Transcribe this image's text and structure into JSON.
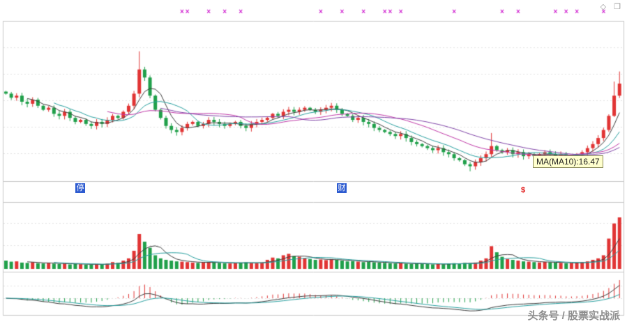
{
  "header": {
    "corner_icons": [
      {
        "glyph": "◇",
        "name": "diamond-icon"
      },
      {
        "glyph": "❐",
        "name": "window-icon"
      }
    ]
  },
  "tooltip": {
    "text": "MA(MA10):16.47"
  },
  "watermark": {
    "text": "头条号 / 股票实战派"
  },
  "chart_data": {
    "type": "candlestick",
    "panes": [
      "price",
      "volume",
      "macd"
    ],
    "price_axis_range": [
      15.2,
      22.8
    ],
    "ma_periods": [
      5,
      10,
      20,
      30
    ],
    "marker_glyph": "×",
    "series_colors": {
      "up": "#e13434",
      "down": "#20a04a",
      "ma5": "#3c3c3c",
      "ma10": "#28a0a0",
      "ma20": "#c038a8",
      "ma30": "#8044a8",
      "vol_ma5": "#3c3c3c",
      "vol_ma10": "#28a0a0",
      "dif": "#3c3c3c",
      "dea": "#28a0a0",
      "hist_up": "#e13434",
      "hist_down": "#20a04a",
      "marker": "#d020d0",
      "grid": "#e3e3e3",
      "border": "#c9c9c9"
    },
    "closes": [
      19.4,
      19.2,
      19.3,
      19.0,
      18.9,
      19.1,
      18.8,
      18.6,
      18.7,
      18.4,
      18.3,
      18.5,
      18.2,
      18.0,
      18.1,
      17.9,
      17.8,
      18.0,
      17.9,
      18.1,
      18.3,
      18.2,
      18.5,
      18.8,
      19.4,
      20.6,
      20.2,
      19.3,
      18.6,
      18.2,
      17.8,
      17.6,
      17.5,
      17.7,
      17.9,
      18.0,
      17.8,
      17.9,
      18.1,
      18.0,
      17.9,
      17.8,
      17.9,
      18.0,
      17.8,
      17.7,
      17.9,
      18.0,
      18.1,
      18.2,
      18.4,
      18.3,
      18.5,
      18.6,
      18.5,
      18.6,
      18.7,
      18.6,
      18.5,
      18.6,
      18.7,
      18.8,
      18.6,
      18.4,
      18.3,
      18.1,
      18.2,
      18.0,
      17.9,
      17.7,
      17.6,
      17.5,
      17.4,
      17.3,
      17.4,
      17.2,
      17.0,
      16.9,
      16.8,
      16.7,
      16.6,
      16.7,
      16.5,
      16.4,
      16.2,
      16.1,
      15.9,
      15.8,
      16.0,
      16.2,
      16.4,
      16.8,
      16.6,
      16.5,
      16.6,
      16.4,
      16.5,
      16.3,
      16.4,
      16.3,
      16.4,
      16.5,
      16.4,
      16.3,
      16.4,
      16.2,
      16.3,
      16.4,
      16.5,
      16.7,
      16.9,
      17.2,
      17.6,
      18.3,
      19.3,
      19.9
    ],
    "volumes": [
      55,
      48,
      50,
      42,
      40,
      45,
      38,
      36,
      40,
      35,
      33,
      36,
      30,
      34,
      31,
      29,
      28,
      32,
      30,
      35,
      45,
      40,
      55,
      70,
      120,
      230,
      180,
      140,
      90,
      70,
      60,
      55,
      50,
      48,
      45,
      42,
      40,
      44,
      46,
      43,
      40,
      38,
      36,
      40,
      42,
      44,
      40,
      38,
      42,
      60,
      75,
      70,
      90,
      100,
      85,
      80,
      70,
      65,
      60,
      62,
      58,
      65,
      60,
      55,
      50,
      52,
      48,
      45,
      47,
      44,
      42,
      40,
      38,
      36,
      38,
      35,
      33,
      36,
      34,
      32,
      30,
      33,
      31,
      35,
      38,
      36,
      40,
      38,
      42,
      55,
      70,
      150,
      110,
      80,
      65,
      60,
      55,
      50,
      48,
      45,
      43,
      46,
      44,
      42,
      40,
      38,
      40,
      42,
      45,
      50,
      60,
      70,
      90,
      200,
      300,
      340
    ],
    "wick_highs": {
      "25": 21.5,
      "91": 17.45,
      "114": 20.0,
      "115": 20.5
    },
    "wick_lows": {
      "87": 15.55
    },
    "top_markers_indices": [
      33,
      34,
      38,
      41,
      44,
      59,
      63,
      67,
      71,
      72,
      74,
      84,
      93,
      96,
      103,
      105,
      107,
      112
    ],
    "event_markers": [
      {
        "index": 14,
        "label": "停",
        "bg": "#2d5bd0",
        "fg": "#ffffff"
      },
      {
        "index": 63,
        "label": "财",
        "bg": "#2d5bd0",
        "fg": "#ffffff"
      },
      {
        "index": 97,
        "label": "$",
        "bg": "",
        "fg": "#e01010"
      }
    ]
  }
}
